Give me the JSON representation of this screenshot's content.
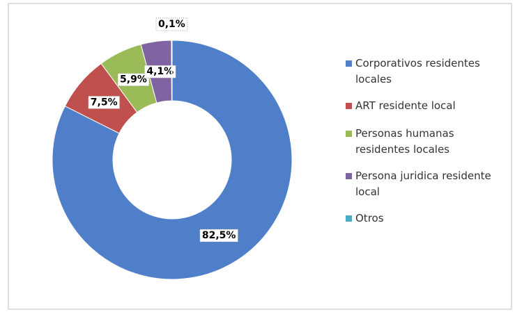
{
  "chart_data": {
    "type": "donut",
    "categories": [
      "Corporativos residentes locales",
      "ART residente local",
      "Personas humanas residentes locales",
      "Persona juridica residente local",
      "Otros"
    ],
    "values": [
      82.5,
      7.5,
      5.9,
      4.1,
      0.1
    ],
    "value_labels": [
      "82,5%",
      "7,5%",
      "5,9%",
      "4,1%",
      "0,1%"
    ],
    "colors": [
      "#4f7fc8",
      "#c0504d",
      "#9bbb59",
      "#8064a2",
      "#4bacc6"
    ],
    "legend": "right"
  }
}
